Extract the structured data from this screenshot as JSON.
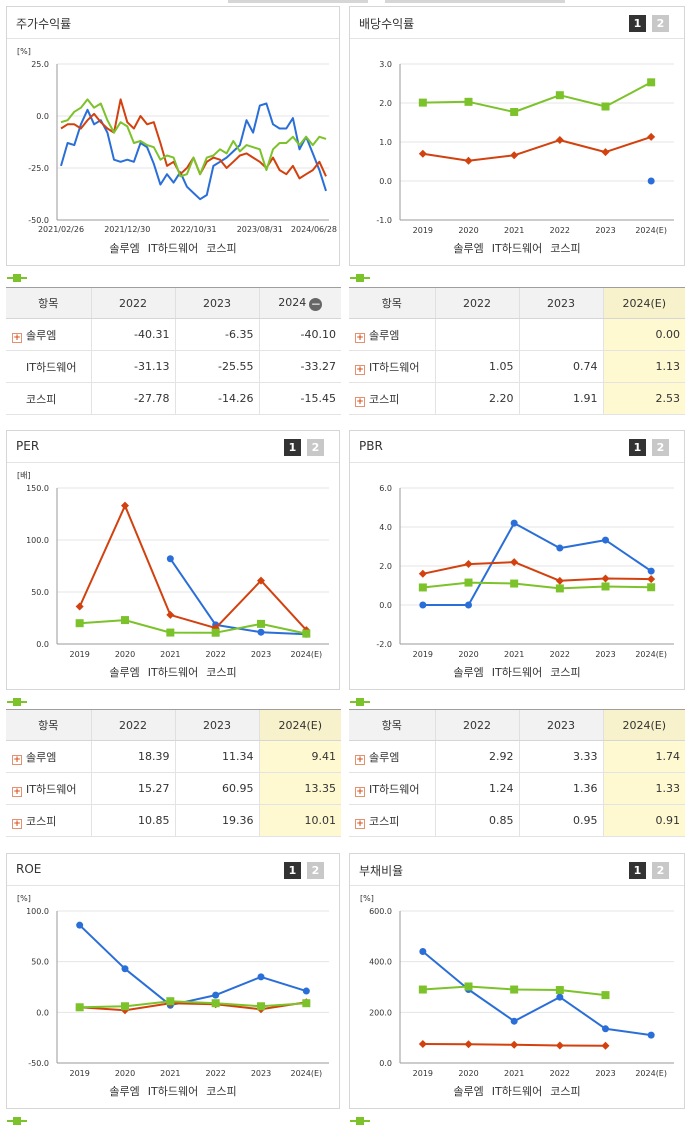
{
  "colors": {
    "solum": "#2a6ed8",
    "ithw": "#d2410e",
    "kospi": "#7cc22a"
  },
  "legend": [
    "솔루엠",
    "IT하드웨어",
    "코스피"
  ],
  "panels": {
    "stock": {
      "title": "주가수익률",
      "unit": "[%]"
    },
    "dividend": {
      "title": "배당수익률",
      "pg1": "1",
      "pg2": "2"
    },
    "per": {
      "title": "PER",
      "unit": "[배]",
      "pg1": "1",
      "pg2": "2"
    },
    "pbr": {
      "title": "PBR",
      "pg1": "1",
      "pg2": "2"
    },
    "roe": {
      "title": "ROE",
      "unit": "[%]",
      "pg1": "1",
      "pg2": "2"
    },
    "debt": {
      "title": "부채비율",
      "unit": "[%]",
      "pg1": "1",
      "pg2": "2"
    }
  },
  "tables": {
    "stock": {
      "headers": [
        "항목",
        "2022",
        "2023",
        "2024"
      ],
      "rows": [
        {
          "name": "솔루엠",
          "plus": true,
          "v": [
            "-40.31",
            "-6.35",
            "-40.10"
          ]
        },
        {
          "name": "IT하드웨어",
          "plus": false,
          "v": [
            "-31.13",
            "-25.55",
            "-33.27"
          ]
        },
        {
          "name": "코스피",
          "plus": false,
          "v": [
            "-27.78",
            "-14.26",
            "-15.45"
          ]
        }
      ]
    },
    "dividend": {
      "headers": [
        "항목",
        "2022",
        "2023",
        "2024(E)"
      ],
      "rows": [
        {
          "name": "솔루엠",
          "plus": true,
          "v": [
            "",
            "",
            "0.00"
          ]
        },
        {
          "name": "IT하드웨어",
          "plus": true,
          "v": [
            "1.05",
            "0.74",
            "1.13"
          ]
        },
        {
          "name": "코스피",
          "plus": true,
          "v": [
            "2.20",
            "1.91",
            "2.53"
          ]
        }
      ]
    },
    "per": {
      "headers": [
        "항목",
        "2022",
        "2023",
        "2024(E)"
      ],
      "rows": [
        {
          "name": "솔루엠",
          "plus": true,
          "v": [
            "18.39",
            "11.34",
            "9.41"
          ]
        },
        {
          "name": "IT하드웨어",
          "plus": true,
          "v": [
            "15.27",
            "60.95",
            "13.35"
          ]
        },
        {
          "name": "코스피",
          "plus": true,
          "v": [
            "10.85",
            "19.36",
            "10.01"
          ]
        }
      ]
    },
    "pbr": {
      "headers": [
        "항목",
        "2022",
        "2023",
        "2024(E)"
      ],
      "rows": [
        {
          "name": "솔루엠",
          "plus": true,
          "v": [
            "2.92",
            "3.33",
            "1.74"
          ]
        },
        {
          "name": "IT하드웨어",
          "plus": true,
          "v": [
            "1.24",
            "1.36",
            "1.33"
          ]
        },
        {
          "name": "코스피",
          "plus": true,
          "v": [
            "0.85",
            "0.95",
            "0.91"
          ]
        }
      ]
    }
  },
  "chart_data": [
    {
      "id": "stock",
      "type": "line",
      "ylim": [
        -50,
        25
      ],
      "yticks": [
        "25.0",
        "0.0",
        "-25.0",
        "-50.0"
      ],
      "ytick_values": [
        25,
        0,
        -25,
        -50
      ],
      "xticks": [
        "2021/02/26",
        "2021/12/30",
        "2022/10/31",
        "2023/08/31",
        "2024/06/28"
      ],
      "xtick_index": [
        0,
        10,
        20,
        30,
        40
      ],
      "n": 41,
      "series": [
        {
          "name": "솔루엠",
          "values": [
            -24,
            -13,
            -14,
            -4,
            3,
            -4,
            -2,
            -8,
            -21,
            -22,
            -21,
            -22,
            -13,
            -15,
            -23,
            -33,
            -28,
            -32,
            -27,
            -34,
            -37,
            -40,
            -38,
            -24,
            -22,
            -20,
            -17,
            -14,
            -2,
            -8,
            5,
            6,
            -4,
            -6,
            -6,
            -1,
            -16,
            -10,
            -18,
            -26,
            -36
          ]
        },
        {
          "name": "IT하드웨어",
          "values": [
            -6,
            -4,
            -4,
            -6,
            -2,
            1,
            -3,
            -6,
            -8,
            8,
            -3,
            -6,
            0,
            -4,
            -3,
            -13,
            -24,
            -22,
            -28,
            -25,
            -20,
            -28,
            -22,
            -20,
            -21,
            -25,
            -22,
            -19,
            -18,
            -20,
            -22,
            -25,
            -20,
            -26,
            -28,
            -24,
            -30,
            -28,
            -26,
            -22,
            -29
          ]
        },
        {
          "name": "코스피",
          "values": [
            -3,
            -2,
            2,
            4,
            8,
            4,
            6,
            -2,
            -8,
            -3,
            -5,
            -13,
            -12,
            -14,
            -15,
            -21,
            -19,
            -20,
            -29,
            -28,
            -20,
            -28,
            -20,
            -19,
            -16,
            -18,
            -12,
            -17,
            -14,
            -15,
            -16,
            -26,
            -16,
            -13,
            -13,
            -10,
            -14,
            -10,
            -14,
            -10,
            -11
          ]
        }
      ]
    },
    {
      "id": "dividend",
      "type": "line",
      "ylim": [
        -1,
        3
      ],
      "yticks": [
        "3.0",
        "2.0",
        "1.0",
        "0.0",
        "-1.0"
      ],
      "ytick_values": [
        3,
        2,
        1,
        0,
        -1
      ],
      "categories": [
        "2019",
        "2020",
        "2021",
        "2022",
        "2023",
        "2024(E)"
      ],
      "series": [
        {
          "name": "솔루엠",
          "values": [
            null,
            null,
            null,
            null,
            null,
            0.0
          ]
        },
        {
          "name": "IT하드웨어",
          "values": [
            0.7,
            0.52,
            0.66,
            1.05,
            0.74,
            1.13
          ]
        },
        {
          "name": "코스피",
          "values": [
            2.01,
            2.03,
            1.77,
            2.2,
            1.91,
            2.53
          ]
        }
      ]
    },
    {
      "id": "per",
      "type": "line",
      "ylim": [
        0,
        150
      ],
      "yticks": [
        "150.0",
        "100.0",
        "50.0",
        "0.0"
      ],
      "ytick_values": [
        150,
        100,
        50,
        0
      ],
      "categories": [
        "2019",
        "2020",
        "2021",
        "2022",
        "2023",
        "2024(E)"
      ],
      "series": [
        {
          "name": "솔루엠",
          "values": [
            null,
            null,
            82,
            18.39,
            11.34,
            9.41
          ]
        },
        {
          "name": "IT하드웨어",
          "values": [
            36,
            133,
            28,
            15.27,
            60.95,
            13.35
          ]
        },
        {
          "name": "코스피",
          "values": [
            20,
            23,
            11,
            10.85,
            19.36,
            10.01
          ]
        }
      ]
    },
    {
      "id": "pbr",
      "type": "line",
      "ylim": [
        -2,
        6
      ],
      "yticks": [
        "6.0",
        "4.0",
        "2.0",
        "0.0",
        "-2.0"
      ],
      "ytick_values": [
        6,
        4,
        2,
        0,
        -2
      ],
      "categories": [
        "2019",
        "2020",
        "2021",
        "2022",
        "2023",
        "2024(E)"
      ],
      "series": [
        {
          "name": "솔루엠",
          "values": [
            0.0,
            0.0,
            4.2,
            2.92,
            3.33,
            1.74
          ]
        },
        {
          "name": "IT하드웨어",
          "values": [
            1.6,
            2.1,
            2.2,
            1.24,
            1.36,
            1.33
          ]
        },
        {
          "name": "코스피",
          "values": [
            0.9,
            1.15,
            1.1,
            0.85,
            0.95,
            0.91
          ]
        }
      ]
    },
    {
      "id": "roe",
      "type": "line",
      "ylim": [
        -50,
        100
      ],
      "yticks": [
        "100.0",
        "50.0",
        "0.0",
        "-50.0"
      ],
      "ytick_values": [
        100,
        50,
        0,
        -50
      ],
      "categories": [
        "2019",
        "2020",
        "2021",
        "2022",
        "2023",
        "2024(E)"
      ],
      "series": [
        {
          "name": "솔루엠",
          "values": [
            86,
            43,
            7,
            17,
            35,
            21
          ]
        },
        {
          "name": "IT하드웨어",
          "values": [
            5,
            2,
            9,
            8,
            3,
            10
          ]
        },
        {
          "name": "코스피",
          "values": [
            5,
            6,
            11,
            9,
            6,
            9
          ]
        }
      ]
    },
    {
      "id": "debt",
      "type": "line",
      "ylim": [
        0,
        600
      ],
      "yticks": [
        "600.0",
        "400.0",
        "200.0",
        "0.0"
      ],
      "ytick_values": [
        600,
        400,
        200,
        0
      ],
      "categories": [
        "2019",
        "2020",
        "2021",
        "2022",
        "2023",
        "2024(E)"
      ],
      "series": [
        {
          "name": "솔루엠",
          "values": [
            440,
            290,
            165,
            260,
            135,
            110
          ]
        },
        {
          "name": "IT하드웨어",
          "values": [
            75,
            74,
            72,
            69,
            68,
            null
          ]
        },
        {
          "name": "코스피",
          "values": [
            290,
            302,
            290,
            288,
            268,
            null
          ]
        }
      ]
    }
  ]
}
